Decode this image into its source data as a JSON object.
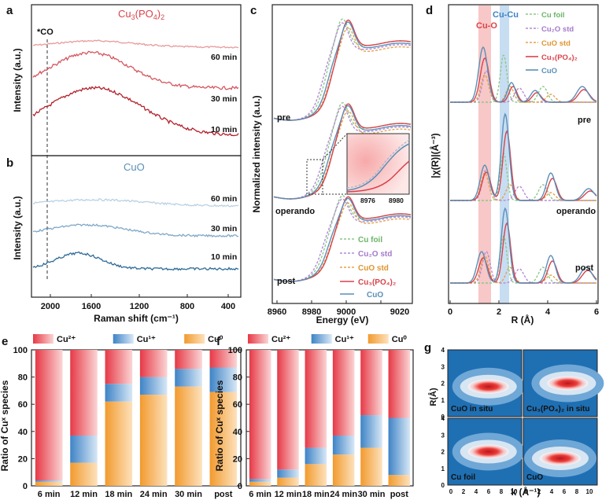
{
  "panels": {
    "a": {
      "letter": "a",
      "title": "Cu3(PO4)2",
      "ylabel": "Intensity (a.u.)",
      "marker": "*CO",
      "traces": [
        "60 min",
        "30 min",
        "10 min"
      ]
    },
    "b": {
      "letter": "b",
      "title": "CuO",
      "ylabel": "Intensity (a.u.)",
      "traces": [
        "60 min",
        "30 min",
        "10 min"
      ],
      "xlabel": "Raman shift (cm⁻¹)",
      "xticks": [
        "2000",
        "1600",
        "1200",
        "800",
        "400"
      ]
    },
    "c": {
      "letter": "c",
      "ylabel": "Normalized intensity (a.u.)",
      "xlabel": "Energy (eV)",
      "xticks": [
        "8960",
        "8980",
        "9000",
        "9020"
      ],
      "states": [
        "pre",
        "operando",
        "post"
      ],
      "inset_ticks": [
        "8976",
        "8980"
      ],
      "legend": [
        "Cu foil",
        "Cu₂O std",
        "CuO std",
        "Cu₃(PO₄)₂",
        "CuO"
      ]
    },
    "d": {
      "letter": "d",
      "ylabel": "|χ(R)|(Å⁻³)",
      "xlabel": "R (Å)",
      "xticks": [
        "0",
        "2",
        "4",
        "6"
      ],
      "states": [
        "pre",
        "operando",
        "post"
      ],
      "bands": [
        "Cu-O",
        "Cu-Cu"
      ],
      "legend": [
        "Cu foil",
        "Cu₂O std",
        "CuO std",
        "Cu₃(PO₄)₂",
        "CuO"
      ]
    },
    "g": {
      "letter": "g",
      "ylabel": "R(Å)",
      "xlabel": "k (Å⁻¹)",
      "labels": [
        "CuO in situ",
        "Cu₃(PO₄)₂ in situ",
        "Cu foil",
        "CuO"
      ],
      "yticks": [
        "0",
        "1",
        "2",
        "3",
        "4"
      ],
      "xticks": [
        "0",
        "2",
        "4",
        "6",
        "8",
        "10"
      ]
    }
  },
  "colors": {
    "cu2": "#e8434d",
    "cu1": "#5a9ad6",
    "cu0": "#f5a035",
    "cu3po4": "#d9434b",
    "cuo": "#5b8fb8",
    "cufoil": "#8cc98a",
    "cu2o": "#b48ad6",
    "cuostd": "#e6a24a"
  },
  "chart_data": [
    {
      "type": "bar",
      "panel": "e",
      "stacked": true,
      "title": "",
      "xlabel": "Time",
      "ylabel": "Ratio of Cuˣ species",
      "ylim": [
        0,
        100
      ],
      "yticks": [
        "0",
        "20",
        "40",
        "60",
        "80",
        "100"
      ],
      "categories": [
        "6 min",
        "12 min",
        "18 min",
        "24 min",
        "30 min",
        "post"
      ],
      "series": [
        {
          "name": "Cu⁰",
          "values": [
            3,
            17,
            62,
            67,
            73,
            69
          ]
        },
        {
          "name": "Cu¹⁺",
          "values": [
            1,
            20,
            13,
            13,
            13,
            18
          ]
        },
        {
          "name": "Cu²⁺",
          "values": [
            96,
            63,
            25,
            20,
            14,
            13
          ]
        }
      ],
      "legend": "top"
    },
    {
      "type": "bar",
      "panel": "f",
      "stacked": true,
      "title": "",
      "xlabel": "Time",
      "ylabel": "Ratio of Cuˣ species",
      "ylim": [
        0,
        100
      ],
      "yticks": [
        "0",
        "20",
        "40",
        "60",
        "80",
        "100"
      ],
      "categories": [
        "6 min",
        "12 min",
        "18 min",
        "24 min",
        "30 min",
        "post"
      ],
      "series": [
        {
          "name": "Cu⁰",
          "values": [
            3,
            6,
            16,
            23,
            28,
            8
          ]
        },
        {
          "name": "Cu¹⁺",
          "values": [
            2,
            6,
            12,
            14,
            24,
            42
          ]
        },
        {
          "name": "Cu²⁺",
          "values": [
            95,
            88,
            72,
            63,
            48,
            50
          ]
        }
      ],
      "legend": "top"
    }
  ],
  "ticks": {
    "e_labels_letter": "e",
    "f_labels_letter": "f"
  }
}
